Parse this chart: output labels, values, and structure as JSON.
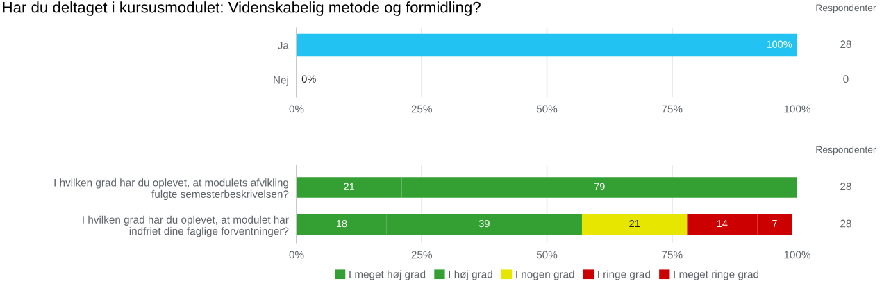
{
  "chart_data": [
    {
      "type": "bar",
      "orientation": "horizontal",
      "title": "Har du deltaget i kursusmodulet: Videnskabelig metode og formidling?",
      "categories": [
        "Ja",
        "Nej"
      ],
      "values": [
        100,
        0
      ],
      "color": "#22c3f3",
      "value_labels": [
        "100%",
        "0%"
      ],
      "xlim": [
        0,
        100
      ],
      "xticks": [
        {
          "value": 0,
          "label": "0%"
        },
        {
          "value": 25,
          "label": "25%"
        },
        {
          "value": 50,
          "label": "50%"
        },
        {
          "value": 75,
          "label": "75%"
        },
        {
          "value": 100,
          "label": "100%"
        }
      ],
      "grid": "x",
      "legend": false,
      "annotations": [
        "Respondenter",
        "28",
        "0"
      ]
    },
    {
      "type": "bar",
      "orientation": "horizontal",
      "stacked": true,
      "categories": [
        "I hvilken grad har du oplevet, at modulets afvikling\nfulgte semesterbeskrivelsen?",
        "I hvilken grad har du oplevet, at modulet har\nindfriet dine faglige forventninger?"
      ],
      "series": [
        {
          "name": "I meget høj grad",
          "color": "#34a033",
          "values": [
            21,
            18
          ],
          "value_labels": [
            "21",
            "18"
          ]
        },
        {
          "name": "I høj grad",
          "color": "#34a033",
          "values": [
            79,
            39
          ],
          "value_labels": [
            "79",
            "39"
          ]
        },
        {
          "name": "I nogen grad",
          "color": "#e6e600",
          "values": [
            0,
            21
          ],
          "value_labels": [
            null,
            "21"
          ]
        },
        {
          "name": "I ringe grad",
          "color": "#cc0000",
          "values": [
            0,
            14
          ],
          "value_labels": [
            null,
            "14"
          ]
        },
        {
          "name": "I meget ringe grad",
          "color": "#cc0000",
          "values": [
            0,
            7
          ],
          "value_labels": [
            null,
            "7"
          ]
        }
      ],
      "xlim": [
        0,
        100
      ],
      "xticks": [
        {
          "value": 0,
          "label": "0%"
        },
        {
          "value": 25,
          "label": "25%"
        },
        {
          "value": 50,
          "label": "50%"
        },
        {
          "value": 75,
          "label": "75%"
        },
        {
          "value": 100,
          "label": "100%"
        }
      ],
      "grid": "x",
      "legend": "bottom",
      "annotations": [
        "Respondenter",
        "28",
        "28"
      ]
    }
  ]
}
